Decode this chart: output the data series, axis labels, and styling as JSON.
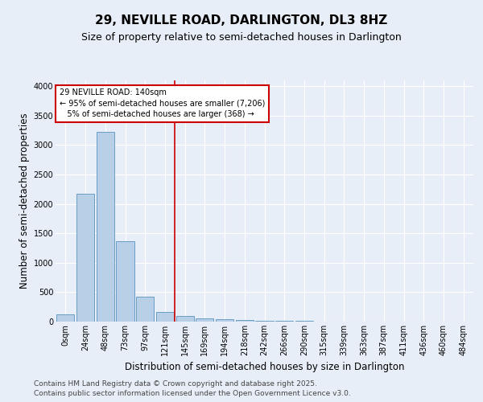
{
  "title": "29, NEVILLE ROAD, DARLINGTON, DL3 8HZ",
  "subtitle": "Size of property relative to semi-detached houses in Darlington",
  "xlabel": "Distribution of semi-detached houses by size in Darlington",
  "ylabel": "Number of semi-detached properties",
  "footer1": "Contains HM Land Registry data © Crown copyright and database right 2025.",
  "footer2": "Contains public sector information licensed under the Open Government Licence v3.0.",
  "bar_labels": [
    "0sqm",
    "24sqm",
    "48sqm",
    "73sqm",
    "97sqm",
    "121sqm",
    "145sqm",
    "169sqm",
    "194sqm",
    "218sqm",
    "242sqm",
    "266sqm",
    "290sqm",
    "315sqm",
    "339sqm",
    "363sqm",
    "387sqm",
    "411sqm",
    "436sqm",
    "460sqm",
    "484sqm"
  ],
  "bar_values": [
    120,
    2170,
    3230,
    1360,
    420,
    170,
    95,
    60,
    45,
    30,
    20,
    15,
    10,
    0,
    0,
    0,
    0,
    0,
    0,
    0,
    0
  ],
  "bar_color": "#b8cfe8",
  "bar_edge_color": "#6a9ec5",
  "vline_x": 5.5,
  "vline_color": "#cc0000",
  "annotation_text": "29 NEVILLE ROAD: 140sqm\n← 95% of semi-detached houses are smaller (7,206)\n   5% of semi-detached houses are larger (368) →",
  "annotation_box_color": "#cc0000",
  "ylim": [
    0,
    4100
  ],
  "yticks": [
    0,
    500,
    1000,
    1500,
    2000,
    2500,
    3000,
    3500,
    4000
  ],
  "bg_color": "#e8eef7",
  "plot_bg_color": "#e8eef7",
  "grid_color": "#ffffff",
  "title_fontsize": 11,
  "subtitle_fontsize": 9,
  "axis_label_fontsize": 8.5,
  "tick_fontsize": 7,
  "footer_fontsize": 6.5
}
